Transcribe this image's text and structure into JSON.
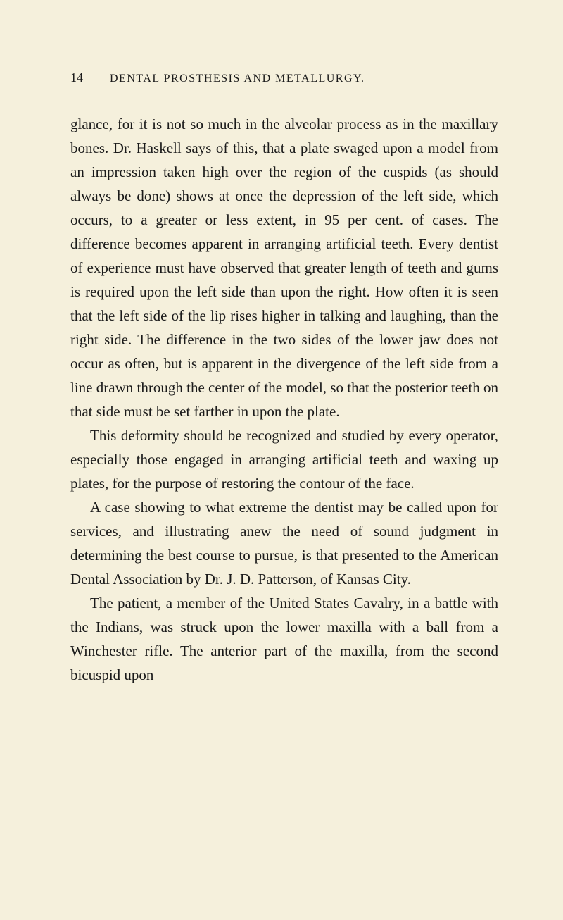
{
  "page": {
    "number": "14",
    "chapter_title": "DENTAL PROSTHESIS AND METALLURGY.",
    "background_color": "#f5f0dc",
    "text_color": "#1a1a1a",
    "body_font_size": 21,
    "header_font_size": 16,
    "page_number_font_size": 18,
    "line_height": 1.62
  },
  "paragraphs": {
    "p1": "glance, for it is not so much in the alveolar process as in the maxillary bones. Dr. Haskell says of this, that a plate swaged upon a model from an impression taken high over the region of the cuspids (as should always be done) shows at once the depression of the left side, which occurs, to a greater or less extent, in 95 per cent. of cases. The difference becomes apparent in arranging artificial teeth. Every dentist of experience must have observed that greater length of teeth and gums is required upon the left side than upon the right. How often it is seen that the left side of the lip rises higher in talking and laughing, than the right side. The difference in the two sides of the lower jaw does not occur as often, but is apparent in the divergence of the left side from a line drawn through the center of the model, so that the posterior teeth on that side must be set farther in upon the plate.",
    "p2": "This deformity should be recognized and studied by every operator, especially those engaged in arranging artificial teeth and waxing up plates, for the purpose of restoring the contour of the face.",
    "p3": "A case showing to what extreme the dentist may be called upon for services, and illustrating anew the need of sound judgment in determining the best course to pursue, is that presented to the American Dental Association by Dr. J. D. Patterson, of Kansas City.",
    "p4": "The patient, a member of the United States Cavalry, in a battle with the Indians, was struck upon the lower maxilla with a ball from a Winchester rifle. The anterior part of the maxilla, from the second bicuspid upon"
  }
}
